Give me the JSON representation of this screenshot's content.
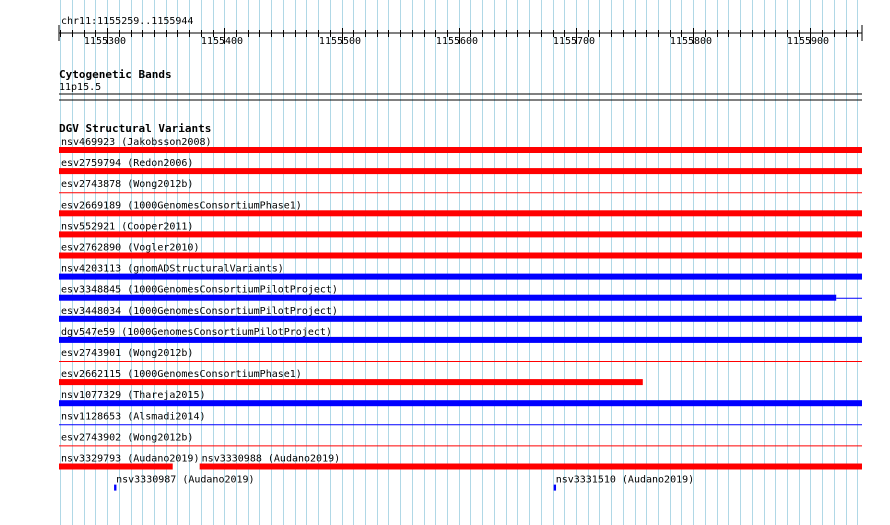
{
  "region": {
    "label": "chr11:1155259..1155944",
    "start": 1155259,
    "end": 1155944,
    "ticks": [
      {
        "pos": 1155300,
        "label": "1155300"
      },
      {
        "pos": 1155400,
        "label": "1155400"
      },
      {
        "pos": 1155500,
        "label": "1155500"
      },
      {
        "pos": 1155600,
        "label": "1155600"
      },
      {
        "pos": 1155700,
        "label": "1155700"
      },
      {
        "pos": 1155800,
        "label": "1155800"
      },
      {
        "pos": 1155900,
        "label": "1155900"
      }
    ]
  },
  "cytoband": {
    "title": "Cytogenetic Bands",
    "band": "11p15.5"
  },
  "dgv": {
    "title": "DGV Structural Variants",
    "colors": {
      "gain": "#ff0000",
      "loss": "#0000ff"
    },
    "tracks": [
      {
        "features": [
          {
            "label": "nsv469923 (Jakobsson2008)",
            "start": 1155259,
            "end": 1155944,
            "type": "gain",
            "thick": true
          }
        ]
      },
      {
        "features": [
          {
            "label": "esv2759794 (Redon2006)",
            "start": 1155259,
            "end": 1155944,
            "type": "gain",
            "thick": true
          }
        ]
      },
      {
        "features": [
          {
            "label": "esv2743878 (Wong2012b)",
            "start": 1155259,
            "end": 1155944,
            "type": "gain",
            "thick": false
          }
        ]
      },
      {
        "features": [
          {
            "label": "esv2669189 (1000GenomesConsortiumPhase1)",
            "start": 1155259,
            "end": 1155944,
            "type": "gain",
            "thick": true
          }
        ]
      },
      {
        "features": [
          {
            "label": "nsv552921 (Cooper2011)",
            "start": 1155259,
            "end": 1155944,
            "type": "gain",
            "thick": true
          }
        ]
      },
      {
        "features": [
          {
            "label": "esv2762890 (Vogler2010)",
            "start": 1155259,
            "end": 1155944,
            "type": "gain",
            "thick": true
          }
        ]
      },
      {
        "features": [
          {
            "label": "nsv4203113 (gnomADStructuralVariants)",
            "start": 1155259,
            "end": 1155944,
            "type": "loss",
            "thick": true
          }
        ]
      },
      {
        "features": [
          {
            "label": "esv3348845 (1000GenomesConsortiumPilotProject)",
            "start": 1155259,
            "end": 1155922,
            "type": "loss",
            "thick": true,
            "line_to": 1155944
          }
        ]
      },
      {
        "features": [
          {
            "label": "esv3448034 (1000GenomesConsortiumPilotProject)",
            "start": 1155259,
            "end": 1155944,
            "type": "loss",
            "thick": true
          }
        ]
      },
      {
        "features": [
          {
            "label": "dgv547e59 (1000GenomesConsortiumPilotProject)",
            "start": 1155259,
            "end": 1155944,
            "type": "loss",
            "thick": true
          }
        ]
      },
      {
        "features": [
          {
            "label": "esv2743901 (Wong2012b)",
            "start": 1155259,
            "end": 1155944,
            "type": "gain",
            "thick": false
          }
        ]
      },
      {
        "features": [
          {
            "label": "esv2662115 (1000GenomesConsortiumPhase1)",
            "start": 1155259,
            "end": 1155757,
            "type": "gain",
            "thick": true
          }
        ]
      },
      {
        "features": [
          {
            "label": "nsv1077329 (Thareja2015)",
            "start": 1155259,
            "end": 1155944,
            "type": "loss",
            "thick": true
          }
        ]
      },
      {
        "features": [
          {
            "label": "nsv1128653 (Alsmadi2014)",
            "start": 1155259,
            "end": 1155944,
            "type": "loss",
            "thick": false
          }
        ]
      },
      {
        "features": [
          {
            "label": "esv2743902 (Wong2012b)",
            "start": 1155259,
            "end": 1155944,
            "type": "gain",
            "thick": false
          }
        ]
      },
      {
        "features": [
          {
            "label": "nsv3329793 (Audano2019)",
            "start": 1155259,
            "end": 1155356,
            "type": "gain",
            "thick": true
          },
          {
            "label": "nsv3330988 (Audano2019)",
            "start": 1155379,
            "end": 1155944,
            "type": "gain",
            "thick": true
          }
        ]
      },
      {
        "features": [
          {
            "label": "nsv3330987 (Audano2019)",
            "start": 1155306,
            "end": 1155308,
            "type": "loss",
            "thick": true
          },
          {
            "label": "nsv3331510 (Audano2019)",
            "start": 1155681,
            "end": 1155683,
            "type": "loss",
            "thick": true
          }
        ]
      }
    ]
  }
}
